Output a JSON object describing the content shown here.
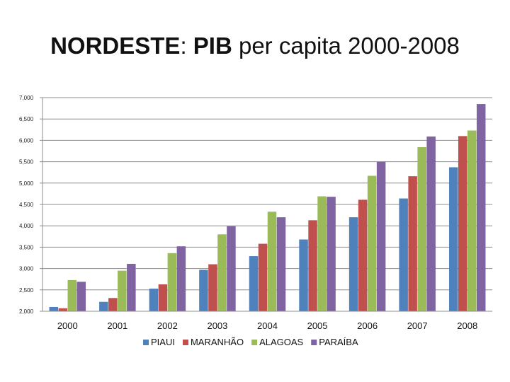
{
  "title": {
    "part1": "NORDESTE",
    "sep": ": ",
    "part2": "PIB",
    "part3": " per capita 2000-2008"
  },
  "chart_data": {
    "type": "bar",
    "title": "NORDESTE: PIB per capita 2000-2008",
    "categories": [
      "2000",
      "2001",
      "2002",
      "2003",
      "2004",
      "2005",
      "2006",
      "2007",
      "2008"
    ],
    "series": [
      {
        "name": "PIAUI",
        "color": "#4f81bd",
        "values": [
          2100,
          2220,
          2530,
          2970,
          3290,
          3680,
          4200,
          4640,
          5370
        ]
      },
      {
        "name": "MARANHÃO",
        "color": "#c0504d",
        "values": [
          2070,
          2310,
          2630,
          3100,
          3580,
          4130,
          4610,
          5160,
          6100
        ]
      },
      {
        "name": "ALAGOAS",
        "color": "#9bbb59",
        "values": [
          2730,
          2950,
          3360,
          3800,
          4330,
          4690,
          5170,
          5840,
          6230
        ]
      },
      {
        "name": "PARAÍBA",
        "color": "#8064a2",
        "values": [
          2690,
          3110,
          3520,
          3990,
          4200,
          4680,
          5500,
          6090,
          6850
        ]
      }
    ],
    "ylim": [
      2000,
      7000
    ],
    "yticks": [
      "2,000",
      "2,500",
      "3,000",
      "3,500",
      "4,000",
      "4,500",
      "5,000",
      "5,500",
      "6,000",
      "6,500",
      "7,000"
    ],
    "ytick_values": [
      2000,
      2500,
      3000,
      3500,
      4000,
      4500,
      5000,
      5500,
      6000,
      6500,
      7000
    ],
    "grid": true,
    "legend": "bottom",
    "xlabel": "",
    "ylabel": ""
  }
}
